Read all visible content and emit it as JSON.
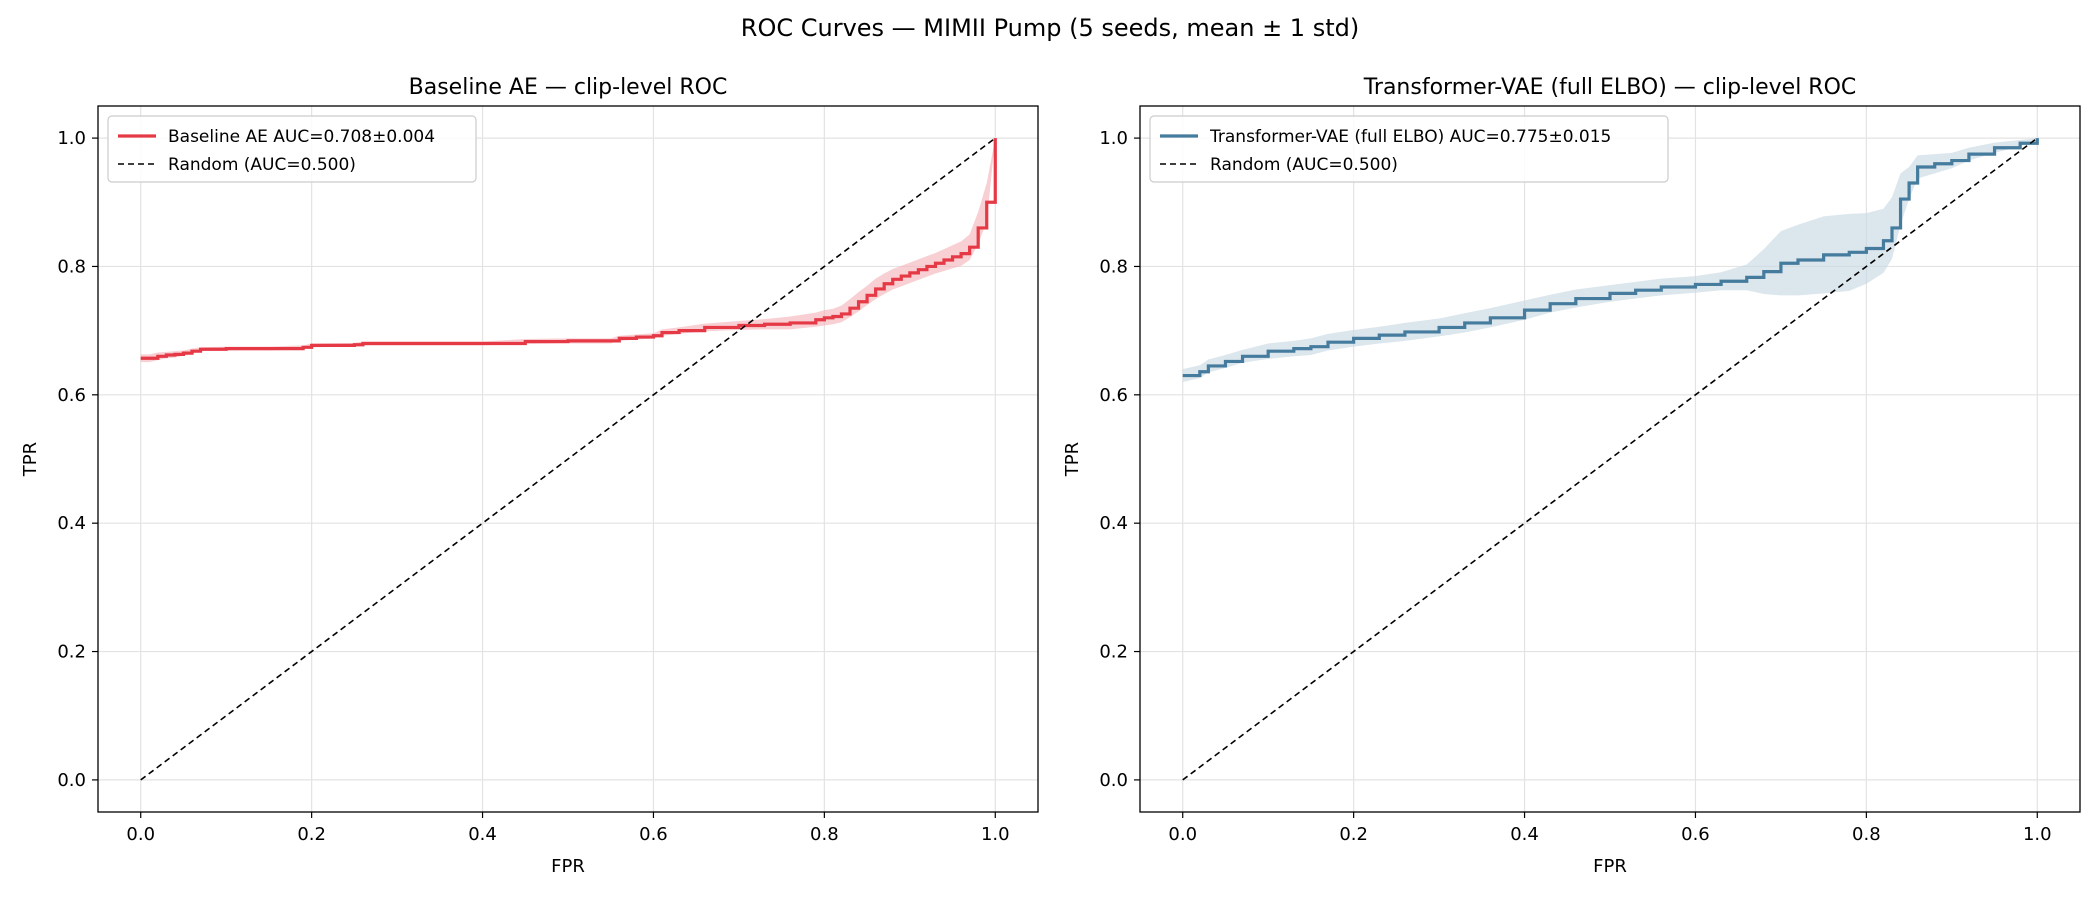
{
  "figure": {
    "suptitle": "ROC Curves — MIMII Pump  (5 seeds, mean ± 1 std)"
  },
  "chart_data": [
    {
      "type": "line",
      "title": "Baseline AE — clip-level ROC",
      "xlabel": "FPR",
      "ylabel": "TPR",
      "xlim": [
        -0.05,
        1.05
      ],
      "ylim": [
        -0.05,
        1.05
      ],
      "xticks": [
        "0.0",
        "0.2",
        "0.4",
        "0.6",
        "0.8",
        "1.0"
      ],
      "yticks": [
        "0.0",
        "0.2",
        "0.4",
        "0.6",
        "0.8",
        "1.0"
      ],
      "grid": true,
      "legend_position": "upper-left",
      "series": [
        {
          "name": "Baseline AE  AUC=0.708±0.004",
          "color": "#e63946",
          "band_color": "#f4b6bb",
          "x": [
            0.0,
            0.01,
            0.02,
            0.03,
            0.04,
            0.05,
            0.06,
            0.07,
            0.1,
            0.15,
            0.19,
            0.2,
            0.25,
            0.26,
            0.3,
            0.35,
            0.4,
            0.45,
            0.5,
            0.55,
            0.56,
            0.58,
            0.6,
            0.61,
            0.63,
            0.66,
            0.7,
            0.73,
            0.76,
            0.79,
            0.8,
            0.81,
            0.82,
            0.83,
            0.84,
            0.85,
            0.86,
            0.87,
            0.88,
            0.89,
            0.9,
            0.91,
            0.92,
            0.93,
            0.94,
            0.95,
            0.96,
            0.97,
            0.98,
            0.99,
            1.0
          ],
          "y": [
            0.657,
            0.657,
            0.66,
            0.662,
            0.663,
            0.665,
            0.668,
            0.671,
            0.672,
            0.672,
            0.674,
            0.677,
            0.678,
            0.68,
            0.68,
            0.68,
            0.68,
            0.683,
            0.684,
            0.684,
            0.688,
            0.69,
            0.692,
            0.697,
            0.7,
            0.705,
            0.708,
            0.71,
            0.712,
            0.717,
            0.72,
            0.722,
            0.726,
            0.735,
            0.745,
            0.755,
            0.765,
            0.773,
            0.78,
            0.785,
            0.79,
            0.795,
            0.8,
            0.805,
            0.81,
            0.815,
            0.82,
            0.83,
            0.86,
            0.9,
            1.0
          ],
          "std": [
            0.006,
            0.006,
            0.006,
            0.005,
            0.005,
            0.004,
            0.004,
            0.003,
            0.003,
            0.003,
            0.003,
            0.003,
            0.003,
            0.003,
            0.003,
            0.003,
            0.003,
            0.004,
            0.004,
            0.004,
            0.004,
            0.004,
            0.004,
            0.005,
            0.005,
            0.006,
            0.007,
            0.008,
            0.01,
            0.011,
            0.012,
            0.012,
            0.013,
            0.014,
            0.015,
            0.015,
            0.016,
            0.016,
            0.016,
            0.016,
            0.016,
            0.016,
            0.016,
            0.016,
            0.017,
            0.018,
            0.019,
            0.02,
            0.025,
            0.03,
            0.0
          ]
        },
        {
          "name": "Random (AUC=0.500)",
          "color": "#000000",
          "dashed": true,
          "x": [
            0.0,
            1.0
          ],
          "y": [
            0.0,
            1.0
          ]
        }
      ]
    },
    {
      "type": "line",
      "title": "Transformer-VAE (full ELBO) — clip-level ROC",
      "xlabel": "FPR",
      "ylabel": "TPR",
      "xlim": [
        -0.05,
        1.05
      ],
      "ylim": [
        -0.05,
        1.05
      ],
      "xticks": [
        "0.0",
        "0.2",
        "0.4",
        "0.6",
        "0.8",
        "1.0"
      ],
      "yticks": [
        "0.0",
        "0.2",
        "0.4",
        "0.6",
        "0.8",
        "1.0"
      ],
      "grid": true,
      "legend_position": "upper-left",
      "series": [
        {
          "name": "Transformer-VAE (full ELBO)  AUC=0.775±0.015",
          "color": "#457b9d",
          "band_color": "#c9d8e4",
          "x": [
            0.0,
            0.02,
            0.03,
            0.05,
            0.07,
            0.1,
            0.13,
            0.15,
            0.17,
            0.2,
            0.23,
            0.26,
            0.3,
            0.33,
            0.36,
            0.4,
            0.43,
            0.46,
            0.5,
            0.53,
            0.56,
            0.6,
            0.63,
            0.66,
            0.68,
            0.7,
            0.72,
            0.75,
            0.78,
            0.8,
            0.82,
            0.83,
            0.84,
            0.85,
            0.86,
            0.88,
            0.9,
            0.92,
            0.95,
            0.98,
            1.0
          ],
          "y": [
            0.63,
            0.636,
            0.645,
            0.652,
            0.66,
            0.668,
            0.672,
            0.675,
            0.682,
            0.688,
            0.693,
            0.698,
            0.705,
            0.712,
            0.72,
            0.732,
            0.742,
            0.75,
            0.758,
            0.763,
            0.768,
            0.772,
            0.777,
            0.783,
            0.792,
            0.805,
            0.81,
            0.818,
            0.822,
            0.828,
            0.84,
            0.86,
            0.905,
            0.93,
            0.955,
            0.96,
            0.965,
            0.975,
            0.985,
            0.992,
            1.0
          ],
          "std": [
            0.01,
            0.01,
            0.01,
            0.01,
            0.01,
            0.012,
            0.012,
            0.013,
            0.013,
            0.013,
            0.013,
            0.014,
            0.014,
            0.015,
            0.015,
            0.015,
            0.014,
            0.014,
            0.013,
            0.013,
            0.013,
            0.013,
            0.014,
            0.02,
            0.035,
            0.05,
            0.055,
            0.06,
            0.06,
            0.055,
            0.05,
            0.048,
            0.04,
            0.025,
            0.018,
            0.015,
            0.012,
            0.01,
            0.008,
            0.005,
            0.0
          ]
        },
        {
          "name": "Random (AUC=0.500)",
          "color": "#000000",
          "dashed": true,
          "x": [
            0.0,
            1.0
          ],
          "y": [
            0.0,
            1.0
          ]
        }
      ]
    }
  ]
}
